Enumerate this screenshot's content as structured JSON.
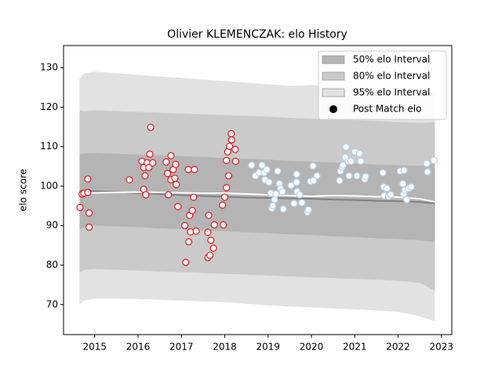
{
  "chart_data": {
    "type": "area",
    "title": "Olivier KLEMENCZAK: elo History",
    "ylabel": "elo score",
    "xlim": [
      2014.28,
      2023.24
    ],
    "ylim": [
      62.4,
      135.6
    ],
    "xticks": [
      2015,
      2016,
      2017,
      2018,
      2019,
      2020,
      2021,
      2022,
      2023
    ],
    "yticks": [
      70,
      80,
      90,
      100,
      110,
      120,
      130
    ],
    "legend": "upper right",
    "x": [
      2014.65,
      2014.75,
      2015,
      2015.5,
      2016,
      2016.5,
      2017,
      2017.5,
      2018,
      2018.5,
      2019,
      2019.5,
      2020,
      2020.5,
      2021,
      2021.5,
      2022,
      2022.5,
      2022.85
    ],
    "series": [
      {
        "name": "50% elo Interval",
        "color": "#b4b4b4",
        "upper": [
          108.1,
          108.3,
          108.4,
          108.2,
          108,
          107.8,
          107.6,
          107.4,
          107.1,
          106.9,
          106.7,
          106.4,
          106.2,
          106,
          105.8,
          105.5,
          105.3,
          105.2,
          105.8
        ],
        "lower": [
          89,
          89.6,
          90,
          89.8,
          89.6,
          89.3,
          89.1,
          88.8,
          88.6,
          88.3,
          88.1,
          87.8,
          87.6,
          87.3,
          87.1,
          86.8,
          86.6,
          86.3,
          85.8
        ]
      },
      {
        "name": "80% elo Interval",
        "color": "#cacaca",
        "upper": [
          119.3,
          119,
          119.2,
          119,
          118.8,
          118.6,
          118.4,
          118.2,
          118,
          117.8,
          117.6,
          117.3,
          117.1,
          116.9,
          116.7,
          116.5,
          116.2,
          116,
          116.2
        ],
        "lower": [
          78,
          78.8,
          79,
          78.8,
          78.6,
          78.4,
          78.2,
          78,
          77.8,
          77.6,
          77.4,
          77.1,
          76.9,
          76.7,
          76.5,
          76.3,
          76,
          75.5,
          73.5
        ]
      },
      {
        "name": "95% elo Interval",
        "color": "#e2e2e2",
        "upper": [
          127.2,
          128.5,
          129,
          128.6,
          128.2,
          127.8,
          127.4,
          127,
          126.6,
          126.2,
          125.8,
          125.4,
          125.6,
          125.2,
          124.8,
          124.4,
          124,
          123.5,
          124.2
        ],
        "lower": [
          70,
          71,
          71.5,
          71.5,
          71.4,
          71.2,
          71,
          70.8,
          70.6,
          70.2,
          69.8,
          69.5,
          69.3,
          69,
          68.8,
          68.5,
          68.2,
          67,
          65.8
        ]
      }
    ],
    "lines": [
      {
        "color": "#808080",
        "values": [
          98.7,
          98.8,
          98.7,
          98.5,
          98.2,
          98,
          97.7,
          97.5,
          97.3,
          97.1,
          97,
          96.9,
          96.8,
          96.6,
          96.5,
          96.3,
          96.2,
          96,
          95.6
        ]
      },
      {
        "color": "#ffffff",
        "values": [
          98,
          98.2,
          98.3,
          98.4,
          98.5,
          98.4,
          98.3,
          98.2,
          98.2,
          98,
          97.8,
          97.6,
          97.4,
          97.6,
          97.5,
          97.3,
          97.2,
          96.8,
          96
        ]
      }
    ],
    "points": {
      "name": "Post Match elo",
      "color": "#000000",
      "groups": [
        {
          "edgecolor": "#e8151b",
          "x": [
            2014.66,
            2014.71,
            2014.75,
            2014.84,
            2014.84,
            2014.87,
            2014.87,
            2015.8,
            2016.09,
            2016.13,
            2016.13,
            2016.16,
            2016.18,
            2016.21,
            2016.25,
            2016.27,
            2016.29,
            2016.34,
            2016.65,
            2016.68,
            2016.7,
            2016.76,
            2016.76,
            2016.81,
            2016.87,
            2016.88,
            2016.92,
            2016.85,
            2017.08,
            2017.1,
            2017.16,
            2017.17,
            2017.19,
            2017.21,
            2017.25,
            2017.28,
            2017.3,
            2017.34,
            2017.63,
            2017.61,
            2017.61,
            2017.66,
            2017.68,
            2017.74,
            2017.76,
            2017.97,
            2017.95,
            2018.0,
            2018.04,
            2018.04,
            2018.07,
            2018.09,
            2018.11,
            2018.15,
            2018.16,
            2018.24,
            2018.25
          ],
          "values": [
            94.6,
            98,
            98.2,
            101.8,
            98.4,
            93.2,
            89.6,
            101.6,
            106.3,
            104.7,
            99.2,
            102.6,
            97.8,
            105.9,
            104.7,
            108.1,
            114.9,
            105.9,
            106.1,
            103.2,
            97.8,
            107.7,
            101.6,
            104.2,
            105.5,
            100.4,
            94.8,
            102,
            90,
            80.7,
            104.2,
            85.9,
            92.6,
            88.4,
            93.8,
            97.2,
            104.2,
            88.6,
            92.6,
            88.3,
            81.9,
            82.5,
            86.3,
            84.3,
            90.2,
            90.2,
            95.2,
            97.2,
            99.6,
            106.5,
            108.7,
            102.6,
            110.1,
            113.3,
            111.7,
            109.3,
            106.3
          ]
        },
        {
          "edgecolor": "#b5d3ee",
          "x": [
            2018.62,
            2018.71,
            2018.79,
            2018.86,
            2018.91,
            2018.93,
            2018.97,
            2019.02,
            2019.06,
            2019.09,
            2019.11,
            2019.15,
            2019.18,
            2019.22,
            2019.26,
            2019.29,
            2019.33,
            2019.35,
            2019.53,
            2019.6,
            2019.66,
            2019.66,
            2019.67,
            2019.73,
            2019.78,
            2019.91,
            2019.93,
            2019.98,
            2020.04,
            2020.05,
            2020.13,
            2020.65,
            2020.67,
            2020.71,
            2020.73,
            2020.78,
            2020.8,
            2020.85,
            2020.87,
            2020.91,
            2021.0,
            2021.05,
            2021.11,
            2021.14,
            2021.23,
            2021.25,
            2021.65,
            2021.67,
            2021.68,
            2021.74,
            2021.78,
            2021.83,
            2022.05,
            2022.11,
            2022.13,
            2022.14,
            2022.16,
            2022.2,
            2022.24,
            2022.3,
            2022.66,
            2022.68,
            2022.83
          ],
          "values": [
            105.3,
            102.6,
            103.4,
            105.3,
            103.4,
            101.6,
            104.2,
            101,
            98.2,
            94.4,
            95,
            96.6,
            98,
            103.8,
            100.6,
            99.4,
            98.6,
            94.2,
            100.2,
            95.6,
            103,
            101,
            98.6,
            97.8,
            95.8,
            93.4,
            94,
            101.2,
            105.1,
            101.4,
            102.6,
            101.4,
            103.8,
            104.8,
            105.3,
            107.3,
            109.9,
            106.3,
            102.6,
            106.3,
            108.7,
            102.6,
            108.3,
            106.3,
            101.8,
            102.4,
            103.4,
            99.8,
            97.6,
            99.4,
            97.4,
            97.8,
            103.8,
            100.6,
            98,
            104,
            99,
            96.6,
            99.4,
            99.8,
            105.7,
            103.6,
            106.5
          ]
        }
      ]
    }
  }
}
